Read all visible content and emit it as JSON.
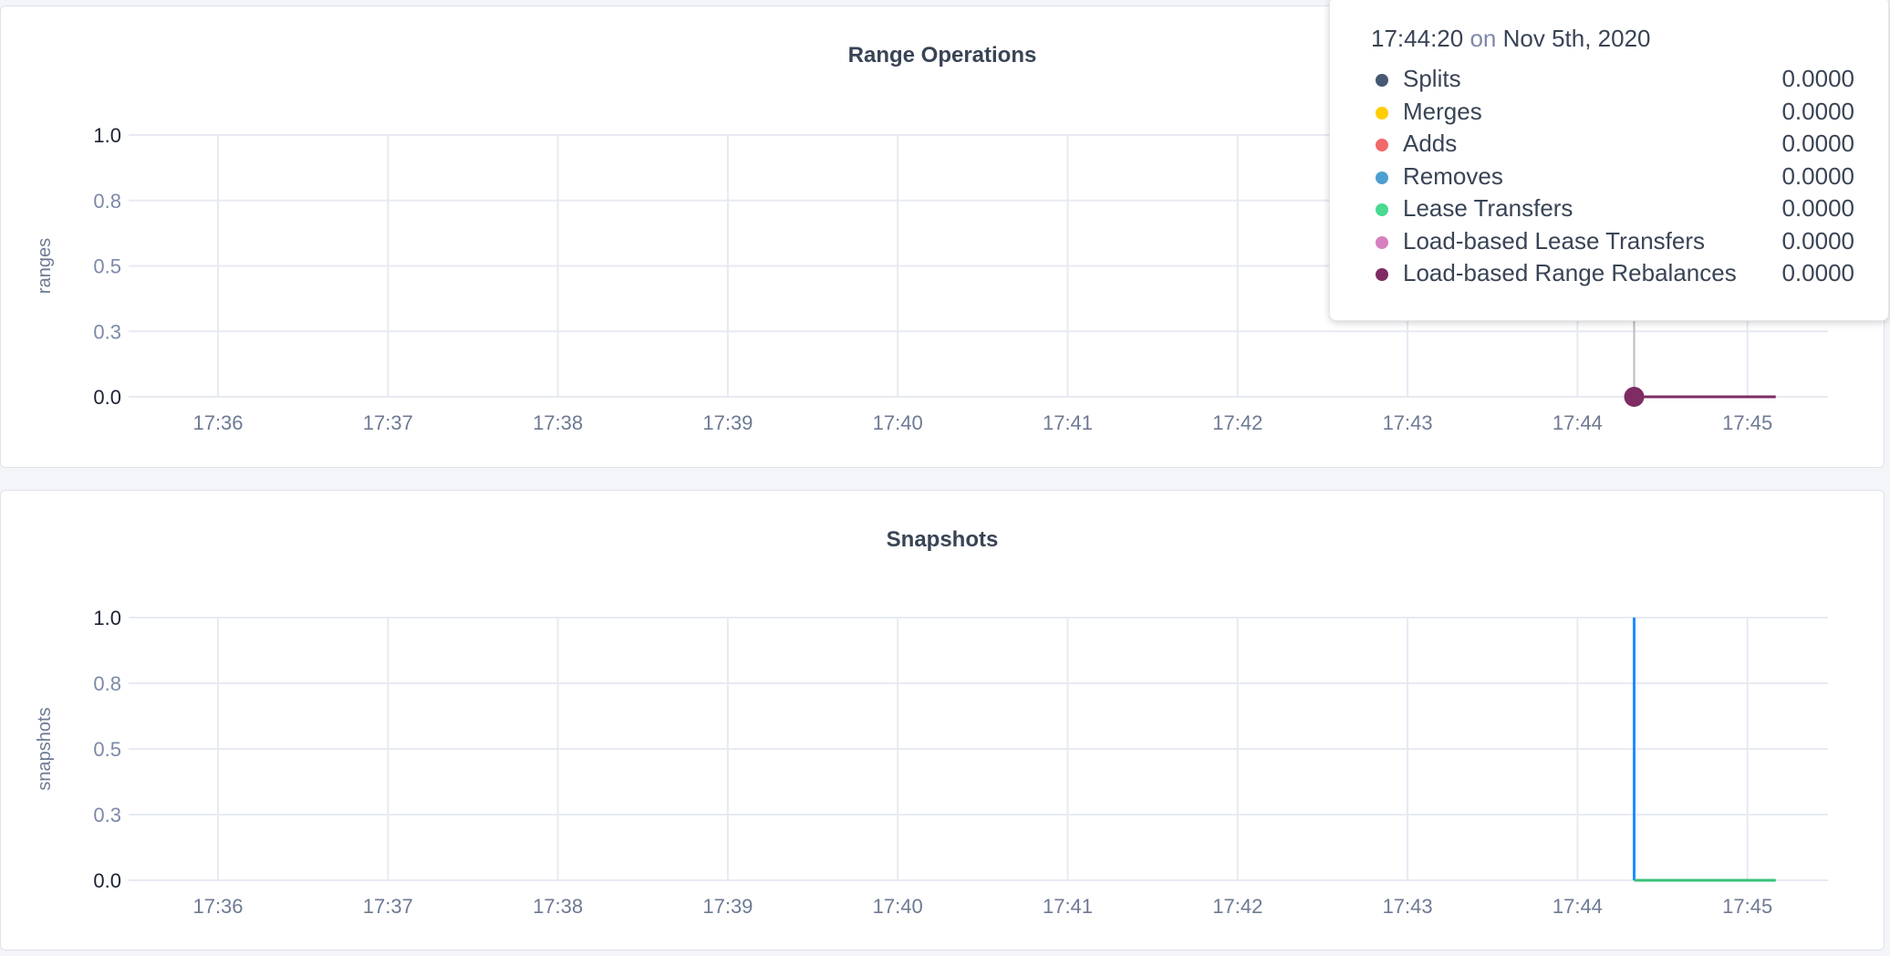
{
  "chart_data": [
    {
      "type": "line",
      "title": "Range Operations",
      "ylabel": "ranges",
      "xlabel": "",
      "ylim": [
        0,
        1
      ],
      "yticks": [
        {
          "value": 0,
          "label": "0.0"
        },
        {
          "value": 0.25,
          "label": "0.3"
        },
        {
          "value": 0.5,
          "label": "0.5"
        },
        {
          "value": 0.75,
          "label": "0.8"
        },
        {
          "value": 1,
          "label": "1.0"
        }
      ],
      "xticks": [
        "17:36",
        "17:37",
        "17:38",
        "17:39",
        "17:40",
        "17:41",
        "17:42",
        "17:43",
        "17:44",
        "17:45"
      ],
      "grid": true,
      "series": [
        {
          "name": "Load-based Range Rebalances",
          "color": "#7e2c63",
          "x": [
            "17:44:20",
            "17:45:10"
          ],
          "y": [
            0,
            0
          ]
        }
      ],
      "hover_marker": {
        "x": "17:44:20",
        "y": 0,
        "color": "#7e2c63"
      }
    },
    {
      "type": "line",
      "title": "Snapshots",
      "ylabel": "snapshots",
      "xlabel": "",
      "ylim": [
        0,
        1
      ],
      "yticks": [
        {
          "value": 0,
          "label": "0.0"
        },
        {
          "value": 0.25,
          "label": "0.3"
        },
        {
          "value": 0.5,
          "label": "0.5"
        },
        {
          "value": 0.75,
          "label": "0.8"
        },
        {
          "value": 1,
          "label": "1.0"
        }
      ],
      "xticks": [
        "17:36",
        "17:37",
        "17:38",
        "17:39",
        "17:40",
        "17:41",
        "17:42",
        "17:43",
        "17:44",
        "17:45"
      ],
      "grid": true,
      "series": [
        {
          "color": "#1f8bff",
          "x": [
            "17:44:20",
            "17:44:20"
          ],
          "y": [
            1,
            0
          ]
        },
        {
          "color": "#37c27a",
          "x": [
            "17:44:20",
            "17:45:10"
          ],
          "y": [
            0,
            0
          ]
        }
      ]
    }
  ],
  "tooltip": {
    "time": "17:44:20",
    "on": "on",
    "date": "Nov 5th, 2020",
    "rows": [
      {
        "name": "Splits",
        "value": "0.0000",
        "color": "#475872"
      },
      {
        "name": "Merges",
        "value": "0.0000",
        "color": "#ffcd02"
      },
      {
        "name": "Adds",
        "value": "0.0000",
        "color": "#f16969"
      },
      {
        "name": "Removes",
        "value": "0.0000",
        "color": "#4e9fd1"
      },
      {
        "name": "Lease Transfers",
        "value": "0.0000",
        "color": "#49d990"
      },
      {
        "name": "Load-based Lease Transfers",
        "value": "0.0000",
        "color": "#d77fbf"
      },
      {
        "name": "Load-based Range Rebalances",
        "value": "0.0000",
        "color": "#7e2c63"
      }
    ]
  }
}
